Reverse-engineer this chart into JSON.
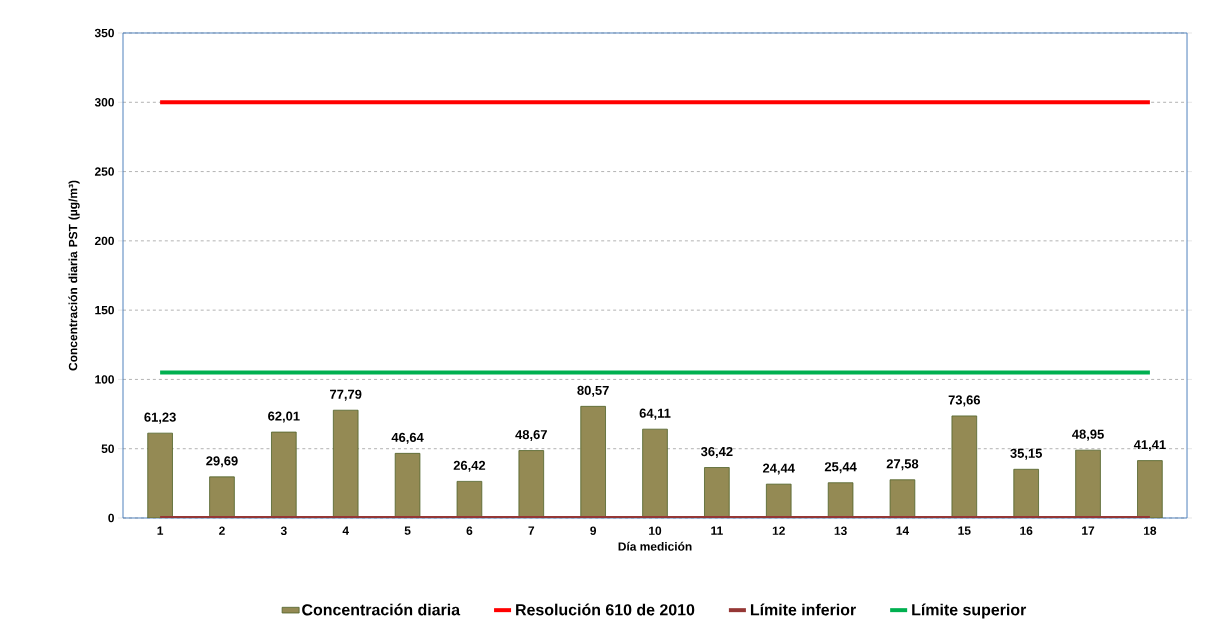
{
  "chart_data": {
    "type": "bar",
    "xlabel": "Día medición",
    "ylabel": "Concentración diaria PST (µg/m³)",
    "categories": [
      "1",
      "2",
      "3",
      "4",
      "5",
      "6",
      "7",
      "9",
      "10",
      "11",
      "12",
      "13",
      "14",
      "15",
      "16",
      "17",
      "18"
    ],
    "series": [
      {
        "name": "Concentración diaria",
        "color": "#948a54",
        "values": [
          61.23,
          29.69,
          62.01,
          77.79,
          46.64,
          26.42,
          48.67,
          80.57,
          64.11,
          36.42,
          24.44,
          25.44,
          27.58,
          73.66,
          35.15,
          48.95,
          41.41
        ],
        "value_labels": [
          "61,23",
          "29,69",
          "62,01",
          "77,79",
          "46,64",
          "26,42",
          "48,67",
          "80,57",
          "64,11",
          "36,42",
          "24,44",
          "25,44",
          "27,58",
          "73,66",
          "35,15",
          "48,95",
          "41,41"
        ]
      },
      {
        "name": "Resolución 610 de 2010",
        "type": "line",
        "color": "#ff0000",
        "values": [
          300,
          300,
          300,
          300,
          300,
          300,
          300,
          300,
          300,
          300,
          300,
          300,
          300,
          300,
          300,
          300,
          300
        ]
      },
      {
        "name": "Límite inferior",
        "type": "line",
        "color": "#953735",
        "values": [
          0,
          0,
          0,
          0,
          0,
          0,
          0,
          0,
          0,
          0,
          0,
          0,
          0,
          0,
          0,
          0,
          0
        ]
      },
      {
        "name": "Límite superior",
        "type": "line",
        "color": "#00b050",
        "values": [
          105,
          105,
          105,
          105,
          105,
          105,
          105,
          105,
          105,
          105,
          105,
          105,
          105,
          105,
          105,
          105,
          105
        ]
      }
    ],
    "ylim": [
      0,
      350
    ],
    "yticks": [
      0,
      50,
      100,
      150,
      200,
      250,
      300,
      350
    ],
    "grid": "y",
    "legend": "bottom"
  }
}
